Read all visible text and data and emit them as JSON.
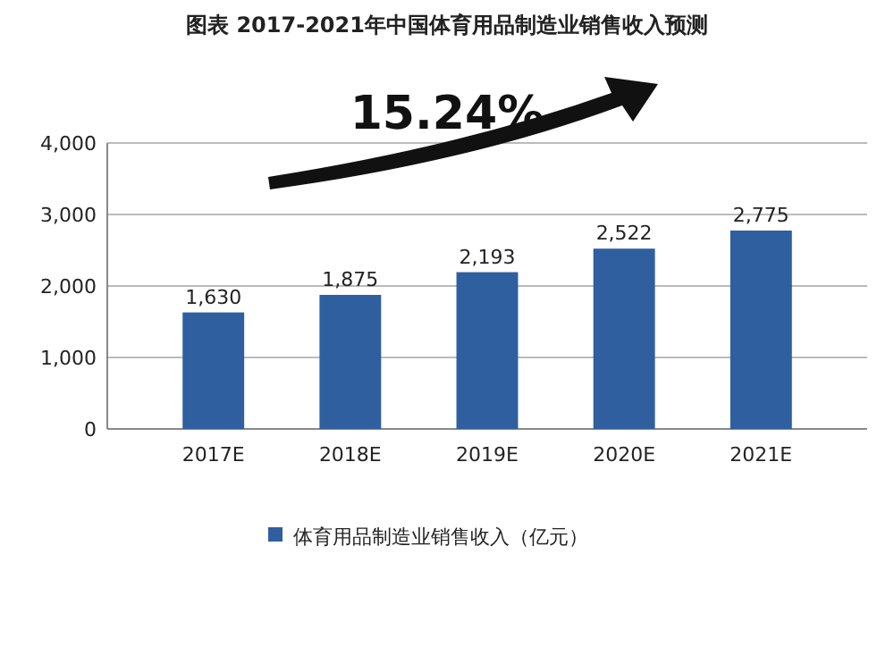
{
  "chart_data": {
    "type": "bar",
    "title": "图表  2017-2021年中国体育用品制造业销售收入预测",
    "categories": [
      "2017E",
      "2018E",
      "2019E",
      "2020E",
      "2021E"
    ],
    "series": [
      {
        "name": "体育用品制造业销售收入（亿元）",
        "color": "#2f5f9e",
        "values": [
          1630,
          1875,
          2193,
          2522,
          2775
        ]
      }
    ],
    "value_labels": [
      "1,630",
      "1,875",
      "2,193",
      "2,522",
      "2,775"
    ],
    "ylim": [
      0,
      4000
    ],
    "yticks": [
      {
        "value": 0,
        "label": "0"
      },
      {
        "value": 1000,
        "label": "1,000"
      },
      {
        "value": 2000,
        "label": "2,000"
      },
      {
        "value": 3000,
        "label": "3,000"
      },
      {
        "value": 4000,
        "label": "4,000"
      }
    ],
    "grid": "y",
    "legend": "bottom",
    "annotations": [
      "15.24%"
    ]
  }
}
